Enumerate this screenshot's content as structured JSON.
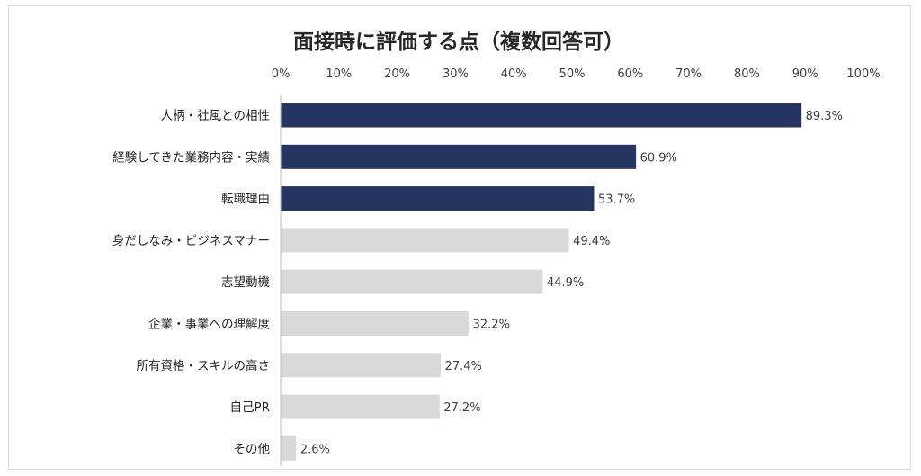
{
  "chart_data": {
    "type": "bar",
    "orientation": "horizontal",
    "title": "面接時に評価する点（複数回答可）",
    "categories": [
      "人柄・社風との相性",
      "経験してきた業務内容・実績",
      "転職理由",
      "身だしなみ・ビジネスマナー",
      "志望動機",
      "企業・事業への理解度",
      "所有資格・スキルの高さ",
      "自己PR",
      "その他"
    ],
    "values": [
      89.3,
      60.9,
      53.7,
      49.4,
      44.9,
      32.2,
      27.4,
      27.2,
      2.6
    ],
    "value_labels": [
      "89.3%",
      "60.9%",
      "53.7%",
      "49.4%",
      "44.9%",
      "32.2%",
      "27.4%",
      "27.2%",
      "2.6%"
    ],
    "highlighted": [
      true,
      true,
      true,
      false,
      false,
      false,
      false,
      false,
      false
    ],
    "xlim": [
      0,
      100
    ],
    "xticks": [
      0,
      10,
      20,
      30,
      40,
      50,
      60,
      70,
      80,
      90,
      100
    ],
    "xtick_labels": [
      "0%",
      "10%",
      "20%",
      "30%",
      "40%",
      "50%",
      "60%",
      "70%",
      "80%",
      "90%",
      "100%"
    ],
    "axis_position": "top",
    "grid": false,
    "legend": "none",
    "colors": {
      "highlight": "#253562",
      "normal": "#d9d9d9",
      "axis": "#bfbfbf"
    }
  }
}
